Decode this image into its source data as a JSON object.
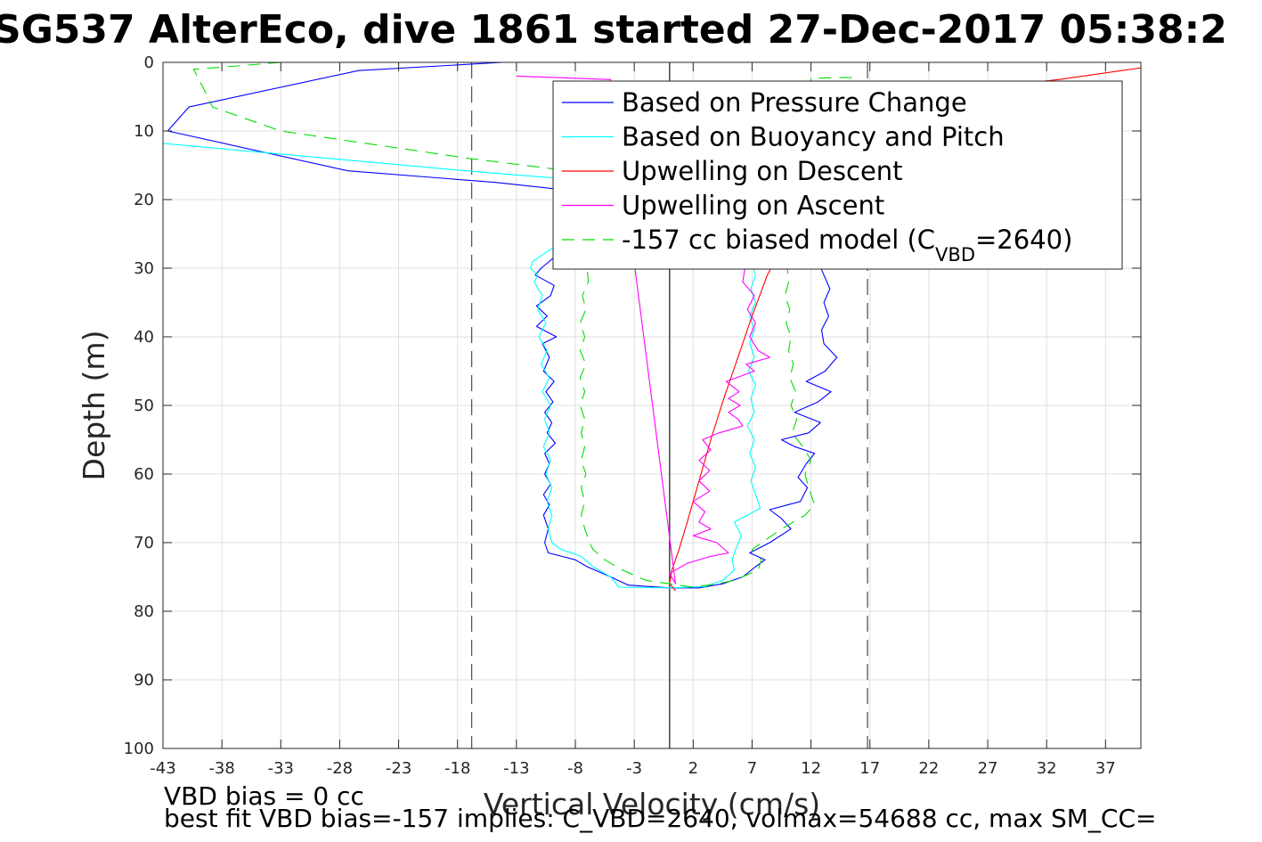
{
  "chart_data": {
    "type": "line",
    "title": "SG537 AlterEco, dive 1861 started 27-Dec-2017 05:38:2",
    "xlabel": "Vertical Velocity (cm/s)",
    "ylabel": "Depth (m)",
    "xlim": [
      -43,
      40
    ],
    "ylim": [
      0,
      100
    ],
    "y_reversed": true,
    "x_ticks": [
      -43,
      -38,
      -33,
      -28,
      -23,
      -18,
      -13,
      -8,
      -3,
      2,
      7,
      12,
      17,
      22,
      27,
      32,
      37
    ],
    "y_ticks": [
      0,
      10,
      20,
      30,
      40,
      50,
      60,
      70,
      80,
      90,
      100
    ],
    "grid": true,
    "legend_position": "top-right",
    "reference_lines": [
      {
        "x": -16.8,
        "style": "dashed"
      },
      {
        "x": 0,
        "style": "solid"
      },
      {
        "x": 16.8,
        "style": "dashed"
      }
    ],
    "series": [
      {
        "name": "Based on Pressure Change",
        "color": "#0000ff",
        "dash": "solid",
        "points": [
          [
            -14.2,
            0
          ],
          [
            -26.4,
            1.2
          ],
          [
            -40.8,
            6.5
          ],
          [
            -42.6,
            10
          ],
          [
            -27.3,
            15.8
          ],
          [
            -14.7,
            17.5
          ],
          [
            -4,
            19.5
          ],
          [
            -3,
            22
          ],
          [
            -9.5,
            28
          ],
          [
            -10.9,
            30
          ],
          [
            -11.4,
            31
          ],
          [
            -9.8,
            32.5
          ],
          [
            -10.1,
            34
          ],
          [
            -11.3,
            35.5
          ],
          [
            -10.4,
            37
          ],
          [
            -11.3,
            38.5
          ],
          [
            -9.6,
            40
          ],
          [
            -10.8,
            41
          ],
          [
            -10.2,
            43
          ],
          [
            -10.7,
            45
          ],
          [
            -9.8,
            46.5
          ],
          [
            -10.5,
            48
          ],
          [
            -9.9,
            49.5
          ],
          [
            -10.6,
            51
          ],
          [
            -10,
            52.5
          ],
          [
            -10.4,
            54
          ],
          [
            -9.7,
            55.5
          ],
          [
            -10.6,
            57
          ],
          [
            -10.2,
            58.5
          ],
          [
            -10.6,
            60
          ],
          [
            -10.1,
            61.5
          ],
          [
            -10.7,
            63
          ],
          [
            -10.2,
            64.5
          ],
          [
            -10.7,
            66
          ],
          [
            -10.3,
            68
          ],
          [
            -10.6,
            70
          ],
          [
            -10.3,
            71.5
          ],
          [
            -8,
            72.5
          ],
          [
            -7,
            73.5
          ],
          [
            -5,
            75
          ],
          [
            -3.5,
            76.2
          ],
          [
            0,
            76.6
          ],
          [
            2.5,
            76.6
          ],
          [
            4.5,
            76
          ],
          [
            6.2,
            75
          ],
          [
            7.3,
            73.5
          ],
          [
            8.1,
            72.5
          ],
          [
            6.8,
            71.5
          ],
          [
            8.5,
            70
          ],
          [
            10.3,
            68
          ],
          [
            9.5,
            66.5
          ],
          [
            8.5,
            65.2
          ],
          [
            11.1,
            64
          ],
          [
            11.7,
            62
          ],
          [
            10.9,
            60.5
          ],
          [
            11.6,
            58.5
          ],
          [
            12.3,
            57
          ],
          [
            10.6,
            56
          ],
          [
            9.5,
            55
          ],
          [
            11.8,
            54
          ],
          [
            12.8,
            52.5
          ],
          [
            10.6,
            51
          ],
          [
            12.6,
            49.5
          ],
          [
            13.7,
            48
          ],
          [
            11.6,
            46.5
          ],
          [
            13.2,
            45
          ],
          [
            14.2,
            43
          ],
          [
            13.1,
            41
          ],
          [
            12.9,
            39
          ],
          [
            13.5,
            37
          ],
          [
            13.1,
            35
          ],
          [
            13.6,
            33
          ],
          [
            13.1,
            31
          ],
          [
            12.6,
            29
          ]
        ]
      },
      {
        "name": "Based on Buoyancy and Pitch",
        "color": "#00ffff",
        "dash": "solid",
        "points": [
          [
            -45,
            11.5
          ],
          [
            -16,
            16
          ],
          [
            -5,
            17.5
          ],
          [
            -3,
            19
          ],
          [
            -11.6,
            29
          ],
          [
            -11.8,
            30
          ],
          [
            -11.2,
            31
          ],
          [
            -11.5,
            32
          ],
          [
            -10.8,
            34
          ],
          [
            -11.2,
            36
          ],
          [
            -10.5,
            38
          ],
          [
            -11.1,
            40
          ],
          [
            -10.4,
            42
          ],
          [
            -10.9,
            44
          ],
          [
            -10.2,
            46
          ],
          [
            -10.8,
            48
          ],
          [
            -10.1,
            50
          ],
          [
            -10.6,
            52
          ],
          [
            -10.2,
            54
          ],
          [
            -10.7,
            56
          ],
          [
            -10.1,
            58
          ],
          [
            -10.5,
            60
          ],
          [
            -10,
            62
          ],
          [
            -10.4,
            64
          ],
          [
            -10,
            66
          ],
          [
            -10.3,
            68
          ],
          [
            -10,
            70
          ],
          [
            -9.2,
            71
          ],
          [
            -7.5,
            72
          ],
          [
            -6.5,
            73.5
          ],
          [
            -5,
            75
          ],
          [
            -4.3,
            76.5
          ],
          [
            0,
            76.6
          ],
          [
            3,
            76.4
          ],
          [
            4.5,
            75.5
          ],
          [
            5.5,
            74
          ],
          [
            5.3,
            72.5
          ],
          [
            5.6,
            71
          ],
          [
            6.1,
            69
          ],
          [
            5.5,
            67
          ],
          [
            7.7,
            65
          ],
          [
            7.3,
            63
          ],
          [
            6.9,
            61
          ],
          [
            7.3,
            59
          ],
          [
            6.8,
            57
          ],
          [
            7.2,
            55
          ],
          [
            6.6,
            53
          ],
          [
            7.2,
            51
          ],
          [
            6.9,
            49
          ],
          [
            7.3,
            47
          ],
          [
            6.7,
            45
          ],
          [
            7.2,
            43
          ],
          [
            6.8,
            41
          ],
          [
            7.2,
            39
          ],
          [
            6.8,
            37
          ],
          [
            7.3,
            35
          ],
          [
            6.9,
            33
          ],
          [
            7.3,
            31
          ],
          [
            7.1,
            30
          ]
        ]
      },
      {
        "name": "Upwelling on Descent",
        "color": "#ff0000",
        "dash": "solid",
        "points": [
          [
            40,
            0.8
          ],
          [
            33,
            2.5
          ],
          [
            25,
            4
          ],
          [
            18,
            6
          ],
          [
            14,
            9
          ],
          [
            12,
            13
          ],
          [
            10.5,
            16
          ],
          [
            10,
            20
          ],
          [
            9.6,
            25
          ],
          [
            9.2,
            28
          ],
          [
            8.3,
            31
          ],
          [
            7,
            37
          ],
          [
            5.8,
            43
          ],
          [
            4.6,
            49
          ],
          [
            3.5,
            55
          ],
          [
            2.5,
            61
          ],
          [
            1.5,
            67
          ],
          [
            0.8,
            71
          ],
          [
            0.2,
            74
          ],
          [
            0,
            76
          ],
          [
            0.5,
            77
          ]
        ]
      },
      {
        "name": "Upwelling on Ascent",
        "color": "#ff00ff",
        "dash": "solid",
        "points": [
          [
            -13,
            2
          ],
          [
            -5,
            2.5
          ],
          [
            0.5,
            76
          ],
          [
            0,
            74.5
          ],
          [
            1.5,
            73
          ],
          [
            3.5,
            72
          ],
          [
            5,
            71.5
          ],
          [
            4,
            70
          ],
          [
            2,
            69
          ],
          [
            3.5,
            68
          ],
          [
            2.5,
            67
          ],
          [
            3,
            65.5
          ],
          [
            2,
            64
          ],
          [
            3.4,
            62.5
          ],
          [
            2.5,
            61
          ],
          [
            3.4,
            59.5
          ],
          [
            2.5,
            58
          ],
          [
            3.5,
            56.5
          ],
          [
            2.8,
            55
          ],
          [
            4.2,
            54
          ],
          [
            6.2,
            53
          ],
          [
            5.8,
            52
          ],
          [
            5,
            51
          ],
          [
            6,
            50
          ],
          [
            5,
            49
          ],
          [
            5.9,
            48
          ],
          [
            4.8,
            46.5
          ],
          [
            7.2,
            45
          ],
          [
            6.5,
            44
          ],
          [
            8.5,
            43
          ],
          [
            7.5,
            42
          ],
          [
            6.8,
            40
          ],
          [
            7.3,
            38
          ],
          [
            6.6,
            36
          ],
          [
            7.2,
            34
          ],
          [
            6.2,
            32
          ],
          [
            6.4,
            30
          ]
        ]
      },
      {
        "name": "-157 cc biased model (C_VBD=2640)",
        "name_parts": [
          "-157 cc biased model (C",
          "VBD",
          "=2640)"
        ],
        "color": "#00dd00",
        "dash": "dashed",
        "points": [
          [
            -33,
            0
          ],
          [
            -38,
            0.7
          ],
          [
            -40.4,
            1
          ],
          [
            -39.2,
            5
          ],
          [
            -38.8,
            6.5
          ],
          [
            -33,
            10
          ],
          [
            -25,
            12
          ],
          [
            -17,
            14
          ],
          [
            -10,
            15.5
          ],
          [
            -4,
            16.5
          ],
          [
            -9,
            28
          ],
          [
            -8,
            29
          ],
          [
            -7,
            30
          ],
          [
            -6.9,
            32
          ],
          [
            -7.4,
            34
          ],
          [
            -7.1,
            36
          ],
          [
            -7.6,
            38
          ],
          [
            -7.2,
            40
          ],
          [
            -7.6,
            42
          ],
          [
            -7.1,
            44
          ],
          [
            -7.6,
            46
          ],
          [
            -7.2,
            48
          ],
          [
            -7.6,
            50
          ],
          [
            -7.2,
            52
          ],
          [
            -7.5,
            54
          ],
          [
            -7.2,
            56
          ],
          [
            -7.5,
            58
          ],
          [
            -7.1,
            60
          ],
          [
            -7.5,
            62
          ],
          [
            -7.2,
            64
          ],
          [
            -7.5,
            66
          ],
          [
            -7.2,
            68
          ],
          [
            -6.8,
            70
          ],
          [
            -6.5,
            71
          ],
          [
            -5.5,
            72.5
          ],
          [
            -4,
            74
          ],
          [
            -2,
            75.5
          ],
          [
            0,
            76
          ],
          [
            2,
            76.5
          ],
          [
            4,
            76
          ],
          [
            5.5,
            75.5
          ],
          [
            7.5,
            74
          ],
          [
            7.8,
            72.5
          ],
          [
            7,
            71
          ],
          [
            9.5,
            68
          ],
          [
            11.5,
            66
          ],
          [
            12.3,
            64.5
          ],
          [
            11.8,
            62
          ],
          [
            11.5,
            60
          ],
          [
            12,
            58
          ],
          [
            11.3,
            56
          ],
          [
            10.4,
            54
          ],
          [
            10.8,
            52
          ],
          [
            10.3,
            50
          ],
          [
            10.7,
            48
          ],
          [
            10.2,
            46
          ],
          [
            10.5,
            44
          ],
          [
            10.1,
            42
          ],
          [
            10.3,
            40
          ],
          [
            9.9,
            38
          ],
          [
            10.2,
            36
          ],
          [
            9.8,
            34
          ],
          [
            10.1,
            32
          ],
          [
            10,
            30
          ],
          [
            12,
            2.3
          ],
          [
            16,
            2.2
          ]
        ]
      }
    ]
  },
  "notes": {
    "line1": "VBD bias = 0 cc",
    "line2": "best fit VBD bias=-157 implies: C_VBD=2640, volmax=54688 cc, max SM_CC="
  }
}
